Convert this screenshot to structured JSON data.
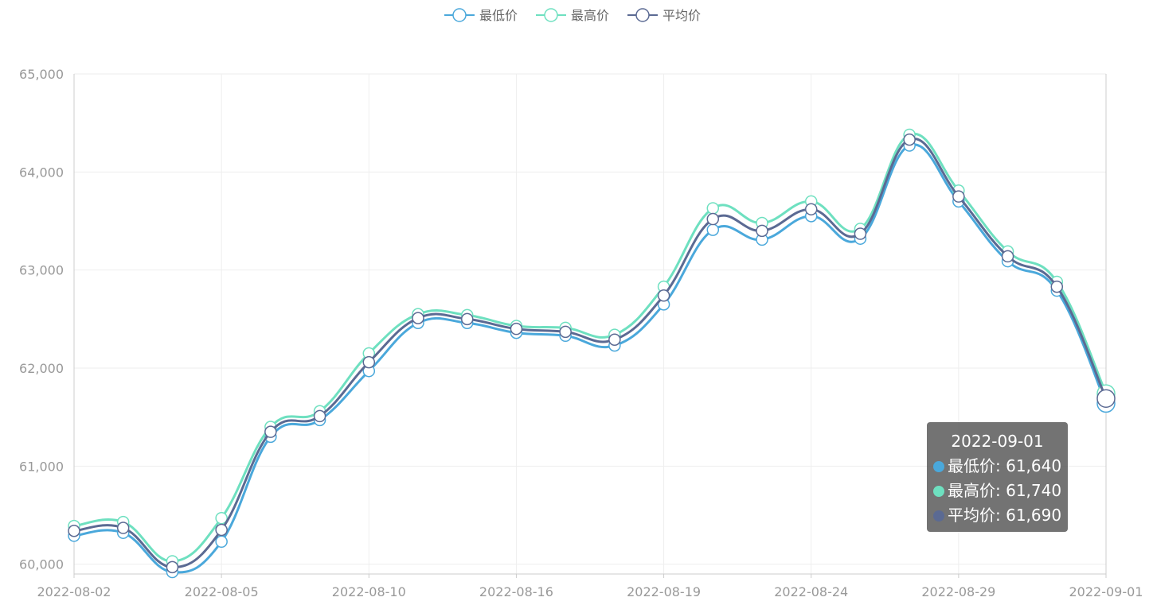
{
  "chart_data": {
    "type": "line",
    "smooth": true,
    "x": [
      "2022-08-02",
      "2022-08-03",
      "2022-08-04",
      "2022-08-05",
      "2022-08-08",
      "2022-08-09",
      "2022-08-10",
      "2022-08-11",
      "2022-08-15",
      "2022-08-16",
      "2022-08-17",
      "2022-08-18",
      "2022-08-19",
      "2022-08-22",
      "2022-08-23",
      "2022-08-24",
      "2022-08-25",
      "2022-08-26",
      "2022-08-29",
      "2022-08-30",
      "2022-08-31",
      "2022-09-01"
    ],
    "x_tick_labels": [
      "2022-08-02",
      "2022-08-05",
      "2022-08-10",
      "2022-08-16",
      "2022-08-19",
      "2022-08-24",
      "2022-08-29",
      "2022-09-01"
    ],
    "ylim": [
      59900,
      65000
    ],
    "y_ticks": [
      60000,
      61000,
      62000,
      63000,
      64000,
      65000
    ],
    "y_tick_labels": [
      "60,000",
      "61,000",
      "62,000",
      "63,000",
      "64,000",
      "65,000"
    ],
    "grid": true,
    "legend_position": "top-center",
    "series": [
      {
        "name": "最低价",
        "color": "#4aa8db",
        "values": [
          60290,
          60320,
          59920,
          60230,
          61300,
          61470,
          61970,
          62460,
          62460,
          62360,
          62330,
          62230,
          62650,
          63410,
          63310,
          63550,
          63320,
          64270,
          63700,
          63090,
          62790,
          61640
        ]
      },
      {
        "name": "最高价",
        "color": "#6ee0c0",
        "values": [
          60390,
          60430,
          60030,
          60470,
          61400,
          61560,
          62150,
          62550,
          62540,
          62430,
          62410,
          62340,
          62830,
          63630,
          63480,
          63700,
          63420,
          64380,
          63810,
          63190,
          62880,
          61740
        ]
      },
      {
        "name": "平均价",
        "color": "#5b6a93",
        "values": [
          60340,
          60370,
          59970,
          60350,
          61350,
          61510,
          62060,
          62510,
          62500,
          62400,
          62370,
          62290,
          62740,
          63520,
          63400,
          63620,
          63370,
          64330,
          63750,
          63140,
          62830,
          61690
        ]
      }
    ]
  },
  "tooltip": {
    "title": "2022-09-01",
    "rows": [
      {
        "label": "最低价: 61,640",
        "color": "#4aa8db"
      },
      {
        "label": "最高价: 61,740",
        "color": "#6ee0c0"
      },
      {
        "label": "平均价: 61,690",
        "color": "#5b6a93"
      }
    ]
  },
  "colors": {
    "axis_text": "#999999",
    "grid": "#eeeeee",
    "axis_line": "#cccccc"
  }
}
